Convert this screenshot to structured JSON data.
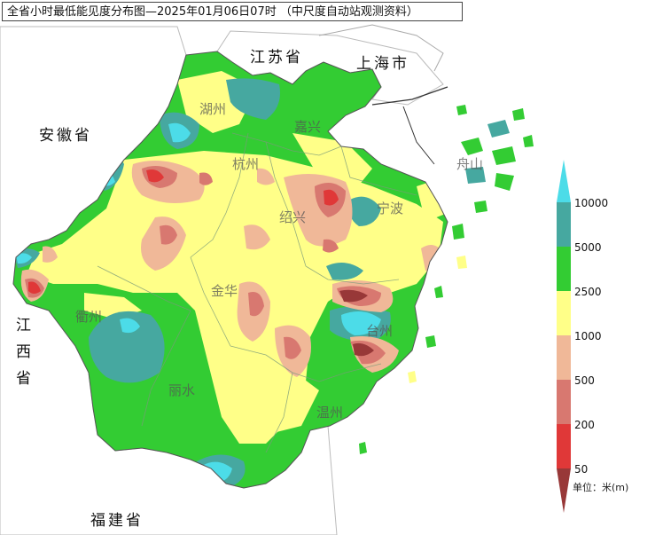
{
  "title": "全省小时最低能见度分布图—2025年01月06日07时 （中尺度自动站观测资料）",
  "regions": {
    "jiangsu": "江苏省",
    "shanghai": "上海市",
    "anhui": "安徽省",
    "jiangxi_1": "江",
    "jiangxi_2": "西",
    "jiangxi_3": "省",
    "fujian": "福建省"
  },
  "cities": {
    "huzhou": "湖州",
    "jiaxing": "嘉兴",
    "hangzhou": "杭州",
    "shaoxing": "绍兴",
    "ningbo": "宁波",
    "zhoushan": "舟山",
    "jinhua": "金华",
    "quzhou": "衢州",
    "taizhou": "台州",
    "lishui": "丽水",
    "wenzhou": "温州"
  },
  "legend": {
    "levels": [
      "10000",
      "5000",
      "2500",
      "1000",
      "500",
      "200",
      "50"
    ],
    "colors": [
      "#4cdce8",
      "#46a8a0",
      "#33cc33",
      "#ffff88",
      "#f0b898",
      "#d87870",
      "#e03838",
      "#983838"
    ],
    "unit": "单位：米(m)"
  },
  "colors": {
    "sea": "#ffffff",
    "background": "#ffffff",
    "border": "#555555"
  }
}
